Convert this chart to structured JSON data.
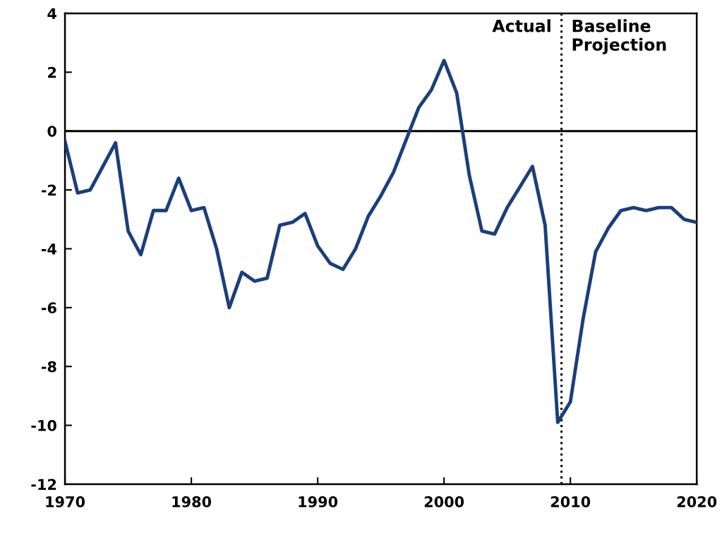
{
  "chart_data": {
    "type": "line",
    "x": [
      1970,
      1971,
      1972,
      1973,
      1974,
      1975,
      1976,
      1977,
      1978,
      1979,
      1980,
      1981,
      1982,
      1983,
      1984,
      1985,
      1986,
      1987,
      1988,
      1989,
      1990,
      1991,
      1992,
      1993,
      1994,
      1995,
      1996,
      1997,
      1998,
      1999,
      2000,
      2001,
      2002,
      2003,
      2004,
      2005,
      2006,
      2007,
      2008,
      2009,
      2010,
      2011,
      2012,
      2013,
      2014,
      2015,
      2016,
      2017,
      2018,
      2019,
      2020
    ],
    "series": [
      {
        "color": "#1a3f7a",
        "values": [
          -0.35,
          -2.1,
          -2.0,
          -1.2,
          -0.4,
          -3.4,
          -4.2,
          -2.7,
          -2.7,
          -1.6,
          -2.7,
          -2.6,
          -4.0,
          -6.0,
          -4.8,
          -5.1,
          -5.0,
          -3.2,
          -3.1,
          -2.8,
          -3.9,
          -4.5,
          -4.7,
          -4.0,
          -2.9,
          -2.2,
          -1.4,
          -0.3,
          0.8,
          1.4,
          2.4,
          1.3,
          -1.5,
          -3.4,
          -3.5,
          -2.6,
          -1.9,
          -1.2,
          -3.2,
          -9.9,
          -9.2,
          -6.4,
          -4.1,
          -3.3,
          -2.7,
          -2.6,
          -2.7,
          -2.6,
          -2.6,
          -3.0,
          -3.1
        ]
      }
    ],
    "xlim": [
      1970,
      2020
    ],
    "xticks": [
      1970,
      1980,
      1990,
      2000,
      2010,
      2020
    ],
    "ylim": [
      -12,
      4
    ],
    "yticks": [
      -12,
      -10,
      -8,
      -6,
      -4,
      -2,
      0,
      2,
      4
    ],
    "ref_lines": [
      {
        "axis": "y",
        "value": 0,
        "color": "#000000",
        "line_style": "solid"
      },
      {
        "axis": "x",
        "value": 2009.3,
        "color": "#000000",
        "line_style": "dotted"
      }
    ],
    "annotations": [
      "Actual",
      "Baseline\nProjection"
    ],
    "grid": false,
    "legend": false,
    "marker": "none",
    "line_style": "solid"
  }
}
